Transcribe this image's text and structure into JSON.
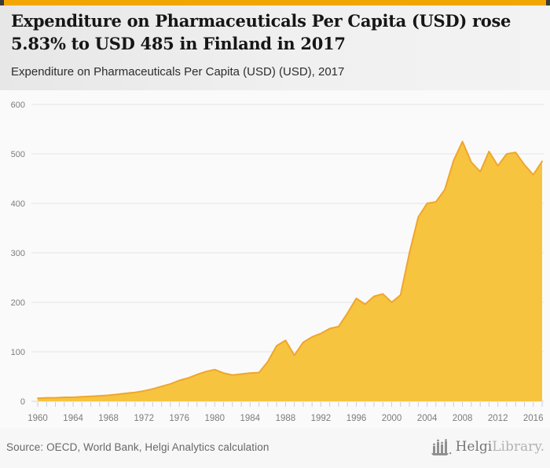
{
  "header": {
    "title": "Expenditure on Pharmaceuticals Per Capita (USD) rose 5.83% to USD 485 in Finland in 2017",
    "subtitle": "Expenditure on Pharmaceuticals Per Capita (USD) (USD), 2017"
  },
  "footer": {
    "source": "Source: OECD, World Bank, Helgi Analytics calculation",
    "logo_name": "Helgi",
    "logo_suffix": "Library."
  },
  "colors": {
    "topbar": "#f2a602",
    "area_fill": "#f7c440",
    "area_stroke": "#efa62b",
    "grid": "#e4e4e4",
    "baseline": "#d8d8d8",
    "tick": "#c5cfdc",
    "axis_text": "#7c7c7c",
    "plot_bg": "#fafafa"
  },
  "chart_data": {
    "type": "area",
    "title": "Expenditure on Pharmaceuticals Per Capita (USD) rose 5.83% to USD 485 in Finland in 2017",
    "subtitle": "Expenditure on Pharmaceuticals Per Capita (USD) (USD), 2017",
    "series_name": "Expenditure on Pharmaceuticals Per Capita (USD), Finland",
    "unit": "USD",
    "xlabel": "",
    "ylabel": "",
    "xlim": [
      1960,
      2017
    ],
    "ylim": [
      0,
      600
    ],
    "grid": true,
    "legend": false,
    "yticks": [
      0,
      100,
      200,
      300,
      400,
      500,
      600
    ],
    "xtick_labels": [
      1960,
      1964,
      1968,
      1972,
      1976,
      1980,
      1984,
      1988,
      1992,
      1996,
      2000,
      2004,
      2008,
      2012,
      2016
    ],
    "x": [
      1960,
      1961,
      1962,
      1963,
      1964,
      1965,
      1966,
      1967,
      1968,
      1969,
      1970,
      1971,
      1972,
      1973,
      1974,
      1975,
      1976,
      1977,
      1978,
      1979,
      1980,
      1981,
      1982,
      1983,
      1984,
      1985,
      1986,
      1987,
      1988,
      1989,
      1990,
      1991,
      1992,
      1993,
      1994,
      1995,
      1996,
      1997,
      1998,
      1999,
      2000,
      2001,
      2002,
      2003,
      2004,
      2005,
      2006,
      2007,
      2008,
      2009,
      2010,
      2011,
      2012,
      2013,
      2014,
      2015,
      2016,
      2017
    ],
    "values": [
      6,
      7,
      7,
      8,
      8,
      9,
      10,
      11,
      12,
      14,
      16,
      18,
      21,
      25,
      30,
      35,
      42,
      47,
      54,
      60,
      64,
      57,
      53,
      55,
      57,
      58,
      80,
      112,
      123,
      93,
      119,
      130,
      137,
      147,
      151,
      178,
      208,
      196,
      212,
      217,
      200,
      215,
      300,
      372,
      400,
      403,
      428,
      487,
      525,
      483,
      464,
      505,
      476,
      500,
      503,
      478,
      458,
      485
    ]
  }
}
